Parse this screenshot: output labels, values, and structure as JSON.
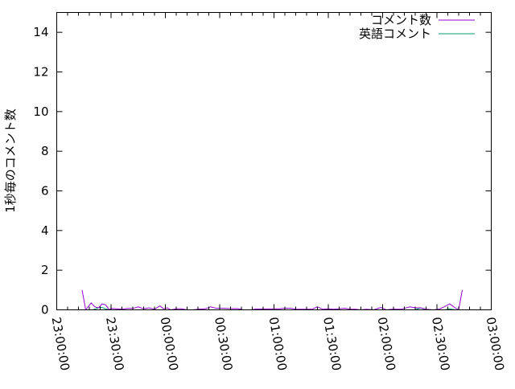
{
  "chart_data": {
    "type": "line",
    "title": "",
    "xlabel": "",
    "ylabel": "1秒毎のコメント数",
    "xlim": [
      "23:00:00",
      "03:00:00"
    ],
    "ylim": [
      0,
      15
    ],
    "x_ticks": [
      "23:00:00",
      "23:30:00",
      "00:00:00",
      "00:30:00",
      "01:00:00",
      "01:30:00",
      "02:00:00",
      "02:30:00",
      "03:00:00"
    ],
    "y_ticks": [
      0,
      2,
      4,
      6,
      8,
      10,
      12,
      14
    ],
    "grid": false,
    "legend_position": "top-right",
    "series": [
      {
        "name": "コメント数",
        "color": "#9400d3",
        "points": [
          [
            "23:14",
            1.0
          ],
          [
            "23:16",
            0
          ],
          [
            "23:19",
            0.35
          ],
          [
            "23:21",
            0.15
          ],
          [
            "23:23",
            0.1
          ],
          [
            "23:25",
            0.3
          ],
          [
            "23:27",
            0.25
          ],
          [
            "23:29",
            0
          ],
          [
            "23:30",
            0.07
          ],
          [
            "23:33",
            0.05
          ],
          [
            "23:36",
            0.03
          ],
          [
            "23:39",
            0.07
          ],
          [
            "23:42",
            0.07
          ],
          [
            "23:45",
            0.15
          ],
          [
            "23:48",
            0.05
          ],
          [
            "23:51",
            0.1
          ],
          [
            "23:54",
            0.03
          ],
          [
            "23:57",
            0.2
          ],
          [
            "23:59",
            0.05
          ],
          [
            "00:01",
            0.1
          ],
          [
            "00:03",
            0
          ],
          [
            "00:06",
            0.05
          ],
          [
            "00:09",
            0.05
          ],
          [
            "00:12",
            0
          ],
          [
            "00:15",
            0
          ],
          [
            "00:18",
            0.03
          ],
          [
            "00:22",
            0.05
          ],
          [
            "00:25",
            0.15
          ],
          [
            "00:28",
            0.08
          ],
          [
            "00:32",
            0.08
          ],
          [
            "00:36",
            0.06
          ],
          [
            "00:40",
            0.06
          ],
          [
            "00:43",
            0
          ],
          [
            "00:47",
            0
          ],
          [
            "00:50",
            0.04
          ],
          [
            "00:53",
            0.04
          ],
          [
            "01:00",
            0.05
          ],
          [
            "01:03",
            0.05
          ],
          [
            "01:06",
            0.08
          ],
          [
            "01:09",
            0.08
          ],
          [
            "01:12",
            0.03
          ],
          [
            "01:15",
            0.03
          ],
          [
            "01:18",
            0.03
          ],
          [
            "01:21",
            0.03
          ],
          [
            "01:24",
            0.15
          ],
          [
            "01:27",
            0.03
          ],
          [
            "01:30",
            0.05
          ],
          [
            "01:33",
            0.03
          ],
          [
            "01:36",
            0.05
          ],
          [
            "01:39",
            0.08
          ],
          [
            "01:42",
            0.03
          ],
          [
            "01:45",
            0.03
          ],
          [
            "01:48",
            0
          ],
          [
            "01:51",
            0.03
          ],
          [
            "01:55",
            0
          ],
          [
            "01:59",
            0.12
          ],
          [
            "02:02",
            0
          ],
          [
            "02:05",
            0.03
          ],
          [
            "02:10",
            0.03
          ],
          [
            "02:15",
            0.15
          ],
          [
            "02:18",
            0.1
          ],
          [
            "02:21",
            0.1
          ],
          [
            "02:24",
            0.03
          ],
          [
            "02:28",
            0
          ],
          [
            "02:31",
            0.03
          ],
          [
            "02:34",
            0.15
          ],
          [
            "02:37",
            0.3
          ],
          [
            "02:40",
            0.1
          ],
          [
            "02:42",
            0
          ],
          [
            "02:44",
            1.0
          ]
        ]
      },
      {
        "name": "英語コメント",
        "color": "#009e73",
        "points": [
          [
            "23:14",
            0
          ],
          [
            "23:20",
            0
          ],
          [
            "23:23",
            0.1
          ],
          [
            "23:25",
            0.12
          ],
          [
            "23:27",
            0.05
          ],
          [
            "23:29",
            0
          ],
          [
            "00:50",
            0
          ],
          [
            "00:53",
            0.03
          ],
          [
            "00:56",
            0
          ],
          [
            "02:18",
            0
          ],
          [
            "02:21",
            0.1
          ],
          [
            "02:24",
            0
          ],
          [
            "02:34",
            0
          ],
          [
            "02:37",
            0.05
          ],
          [
            "02:40",
            0
          ],
          [
            "02:44",
            0
          ]
        ]
      }
    ]
  }
}
